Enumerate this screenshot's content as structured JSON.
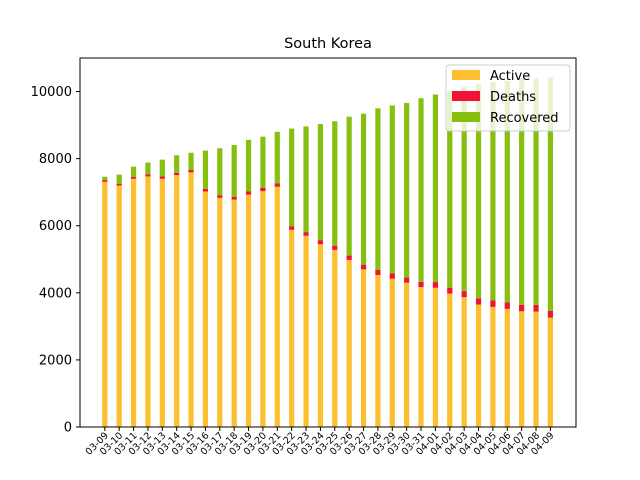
{
  "chart_data": {
    "type": "bar",
    "stacked": true,
    "title": "South Korea",
    "xlabel": "",
    "ylabel": "",
    "ylim": [
      0,
      11000
    ],
    "yticks": [
      0,
      2000,
      4000,
      6000,
      8000,
      10000
    ],
    "grid": false,
    "legend_position": "top-right",
    "categories": [
      "03-09",
      "03-10",
      "03-11",
      "03-12",
      "03-13",
      "03-14",
      "03-15",
      "03-16",
      "03-17",
      "03-18",
      "03-19",
      "03-20",
      "03-21",
      "03-22",
      "03-23",
      "03-24",
      "03-25",
      "03-26",
      "03-27",
      "03-28",
      "03-29",
      "03-30",
      "03-31",
      "04-01",
      "04-02",
      "04-03",
      "04-04",
      "04-05",
      "04-06",
      "04-07",
      "04-08",
      "04-09"
    ],
    "series": [
      {
        "name": "Active",
        "color": "#FBBF2F",
        "values": [
          7310,
          7200,
          7400,
          7470,
          7400,
          7510,
          7590,
          7020,
          6830,
          6780,
          6930,
          7030,
          7160,
          5880,
          5700,
          5450,
          5280,
          4980,
          4700,
          4530,
          4420,
          4300,
          4170,
          4150,
          3980,
          3870,
          3650,
          3580,
          3520,
          3450,
          3440,
          3260
        ]
      },
      {
        "name": "Deaths",
        "color": "#EE1337",
        "values": [
          50,
          55,
          60,
          65,
          70,
          70,
          75,
          80,
          80,
          85,
          90,
          95,
          100,
          105,
          110,
          120,
          125,
          130,
          140,
          150,
          155,
          160,
          160,
          170,
          175,
          180,
          185,
          190,
          195,
          195,
          200,
          200
        ]
      },
      {
        "name": "Recovered",
        "color": "#87BF0E",
        "values": [
          100,
          270,
          300,
          350,
          500,
          520,
          510,
          1140,
          1400,
          1540,
          1540,
          1530,
          1540,
          2910,
          3150,
          3460,
          3710,
          4140,
          4500,
          4820,
          5010,
          5200,
          5470,
          5590,
          5870,
          6080,
          6380,
          6510,
          6600,
          6750,
          6750,
          6950
        ]
      }
    ]
  }
}
